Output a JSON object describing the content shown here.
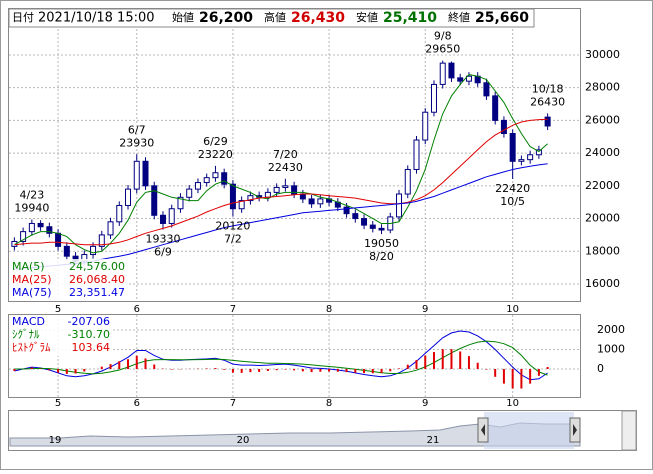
{
  "header": {
    "date_label": "日付",
    "date": "2021/10/18 15:00",
    "items": [
      {
        "label": "始値",
        "value": "26,200"
      },
      {
        "label": "高値",
        "value": "26,430"
      },
      {
        "label": "安値",
        "value": "25,410"
      },
      {
        "label": "終値",
        "value": "25,660"
      }
    ]
  },
  "chart_data": {
    "type": "candlestick",
    "categories": [
      null,
      null,
      null,
      null,
      null,
      "5",
      null,
      null,
      null,
      null,
      null,
      null,
      null,
      null,
      "6",
      null,
      null,
      null,
      null,
      null,
      null,
      null,
      null,
      null,
      null,
      "7",
      null,
      null,
      null,
      null,
      null,
      null,
      null,
      null,
      null,
      null,
      "8",
      null,
      null,
      null,
      null,
      null,
      null,
      null,
      null,
      null,
      null,
      "9",
      null,
      null,
      null,
      null,
      null,
      null,
      null,
      null,
      null,
      "10",
      null,
      null,
      null,
      null
    ],
    "ohlc": [
      [
        18300,
        18850,
        18050,
        18600
      ],
      [
        18600,
        19450,
        18350,
        19200
      ],
      [
        19200,
        19940,
        18950,
        19700
      ],
      [
        19700,
        19900,
        19250,
        19500
      ],
      [
        19500,
        19750,
        18850,
        19100
      ],
      [
        19100,
        19350,
        18050,
        18300
      ],
      [
        18300,
        18550,
        17450,
        17700
      ],
      [
        17700,
        17950,
        17150,
        17400
      ],
      [
        17400,
        18050,
        17150,
        17800
      ],
      [
        17800,
        18550,
        17550,
        18300
      ],
      [
        18300,
        19250,
        18050,
        19000
      ],
      [
        19000,
        20050,
        18750,
        19800
      ],
      [
        19800,
        21050,
        19550,
        20800
      ],
      [
        20800,
        22050,
        20550,
        21800
      ],
      [
        21800,
        23930,
        21550,
        23500
      ],
      [
        23500,
        23750,
        21750,
        22000
      ],
      [
        22000,
        22250,
        19950,
        20200
      ],
      [
        20200,
        20450,
        19330,
        19700
      ],
      [
        19700,
        20850,
        19450,
        20600
      ],
      [
        20600,
        21550,
        20350,
        21300
      ],
      [
        21300,
        22050,
        21050,
        21800
      ],
      [
        21800,
        22450,
        21550,
        22200
      ],
      [
        22200,
        22750,
        21950,
        22500
      ],
      [
        22500,
        23220,
        22250,
        22800
      ],
      [
        22800,
        23050,
        21850,
        22100
      ],
      [
        22100,
        22350,
        20120,
        20600
      ],
      [
        20600,
        21350,
        20350,
        21100
      ],
      [
        21100,
        21650,
        20850,
        21400
      ],
      [
        21400,
        21650,
        21050,
        21300
      ],
      [
        21300,
        21850,
        21050,
        21600
      ],
      [
        21600,
        22150,
        21350,
        21900
      ],
      [
        21900,
        22430,
        21650,
        22000
      ],
      [
        22000,
        22250,
        21250,
        21500
      ],
      [
        21500,
        21750,
        20950,
        21200
      ],
      [
        21200,
        21450,
        20650,
        20900
      ],
      [
        20900,
        21450,
        20650,
        21200
      ],
      [
        21200,
        21450,
        20750,
        21000
      ],
      [
        21000,
        21250,
        20450,
        20700
      ],
      [
        20700,
        20950,
        20050,
        20300
      ],
      [
        20300,
        20550,
        19750,
        20000
      ],
      [
        20000,
        20250,
        19350,
        19600
      ],
      [
        19600,
        19850,
        19150,
        19400
      ],
      [
        19400,
        19650,
        19050,
        19300
      ],
      [
        19300,
        20350,
        19100,
        20100
      ],
      [
        20100,
        21750,
        19850,
        21500
      ],
      [
        21500,
        23250,
        21250,
        23000
      ],
      [
        23000,
        25050,
        22750,
        24800
      ],
      [
        24800,
        26750,
        24550,
        26500
      ],
      [
        26500,
        28450,
        26250,
        28200
      ],
      [
        28200,
        29650,
        27950,
        29500
      ],
      [
        29500,
        29600,
        28350,
        28600
      ],
      [
        28600,
        28850,
        28150,
        28400
      ],
      [
        28400,
        28950,
        28150,
        28700
      ],
      [
        28700,
        28950,
        28050,
        28300
      ],
      [
        28300,
        28550,
        27250,
        27500
      ],
      [
        27500,
        27750,
        25750,
        26000
      ],
      [
        26000,
        26250,
        24950,
        25200
      ],
      [
        25200,
        25450,
        22420,
        23500
      ],
      [
        23500,
        23850,
        23250,
        23600
      ],
      [
        23600,
        24150,
        23350,
        23900
      ],
      [
        23900,
        24450,
        23650,
        24200
      ],
      [
        26200,
        26430,
        25410,
        25660
      ]
    ],
    "candle_colors": {
      "up": "#ffffff",
      "down": "#000080",
      "outline": "#000080"
    },
    "series": [
      {
        "name": "MA(5)",
        "color": "#008000",
        "value_label": "24,576.00",
        "values": [
          18400,
          18700,
          19000,
          19200,
          19200,
          19100,
          18900,
          18400,
          18100,
          17900,
          18000,
          18500,
          19100,
          19900,
          21000,
          21600,
          21700,
          21500,
          21300,
          21200,
          21100,
          21100,
          21700,
          22100,
          22300,
          22000,
          21800,
          21600,
          21300,
          21200,
          21500,
          21600,
          21600,
          21600,
          21500,
          21300,
          21200,
          21000,
          20800,
          20600,
          20300,
          20000,
          19700,
          19700,
          19800,
          20700,
          21700,
          23000,
          24800,
          26400,
          27500,
          28200,
          28800,
          28700,
          28500,
          27800,
          27100,
          26100,
          25200,
          24400,
          24100,
          24576
        ]
      },
      {
        "name": "MA(25)",
        "color": "#e00000",
        "value_label": "26,068.40",
        "values": [
          18400,
          18450,
          18500,
          18500,
          18550,
          18550,
          18500,
          18450,
          18400,
          18400,
          18400,
          18450,
          18550,
          18700,
          18900,
          19100,
          19250,
          19400,
          19550,
          19750,
          19950,
          20150,
          20400,
          20600,
          20800,
          20950,
          21050,
          21150,
          21250,
          21300,
          21350,
          21400,
          21450,
          21500,
          21500,
          21450,
          21400,
          21350,
          21300,
          21250,
          21150,
          21050,
          20950,
          20900,
          20900,
          21000,
          21150,
          21400,
          21750,
          22200,
          22700,
          23200,
          23700,
          24200,
          24700,
          25100,
          25400,
          25700,
          25900,
          26000,
          26050,
          26068.4
        ]
      },
      {
        "name": "MA(75)",
        "color": "#0000e0",
        "value_label": "23,351.47",
        "values": [
          16900,
          16950,
          17000,
          17050,
          17100,
          17150,
          17200,
          17250,
          17300,
          17400,
          17500,
          17600,
          17700,
          17800,
          17950,
          18100,
          18250,
          18400,
          18550,
          18700,
          18850,
          19000,
          19150,
          19300,
          19450,
          19550,
          19650,
          19750,
          19850,
          19950,
          20050,
          20150,
          20250,
          20350,
          20400,
          20450,
          20500,
          20550,
          20600,
          20650,
          20700,
          20750,
          20800,
          20850,
          20900,
          20950,
          21050,
          21200,
          21350,
          21550,
          21750,
          21950,
          22150,
          22350,
          22550,
          22700,
          22850,
          23000,
          23100,
          23200,
          23280,
          23351.47
        ]
      }
    ],
    "ylim": [
      14960,
      32810
    ],
    "yticks": [
      16000,
      18000,
      20000,
      22000,
      24000,
      26000,
      28000,
      30000
    ],
    "grid": true,
    "annotations": [
      {
        "date": "4/23",
        "value": 19940
      },
      {
        "date": "6/7",
        "value": 23930
      },
      {
        "date": "6/9",
        "value": 19330
      },
      {
        "date": "6/29",
        "value": 23220
      },
      {
        "date": "7/2",
        "value": 20120
      },
      {
        "date": "7/20",
        "value": 22430
      },
      {
        "date": "8/20",
        "value": 19050
      },
      {
        "date": "9/8",
        "value": 29650
      },
      {
        "date": "10/5",
        "value": 22420
      },
      {
        "date": "10/18",
        "value": 26430
      }
    ],
    "macd": {
      "ylim": [
        -1436,
        2770
      ],
      "yticks": [
        0,
        1000,
        2000
      ],
      "series": [
        {
          "name": "MACD",
          "type": "line",
          "color": "#0000e0",
          "value_label": "-207.06",
          "values": [
            -100,
            0,
            100,
            50,
            -50,
            -200,
            -350,
            -400,
            -350,
            -250,
            -100,
            100,
            350,
            600,
            950,
            950,
            700,
            500,
            450,
            450,
            480,
            500,
            520,
            550,
            450,
            250,
            200,
            200,
            180,
            200,
            230,
            250,
            200,
            130,
            50,
            30,
            0,
            -50,
            -120,
            -200,
            -280,
            -350,
            -400,
            -350,
            -200,
            50,
            400,
            800,
            1200,
            1600,
            1850,
            1950,
            1900,
            1700,
            1400,
            1000,
            550,
            100,
            -300,
            -550,
            -500,
            -207.06
          ]
        },
        {
          "name": "ｼｸﾞﾅﾙ",
          "type": "line",
          "color": "#008000",
          "value_label": "-310.70",
          "values": [
            0,
            0,
            20,
            30,
            20,
            -20,
            -100,
            -170,
            -220,
            -250,
            -220,
            -150,
            -50,
            100,
            270,
            410,
            470,
            480,
            480,
            470,
            470,
            480,
            490,
            500,
            490,
            440,
            400,
            360,
            330,
            300,
            290,
            280,
            270,
            250,
            210,
            170,
            130,
            90,
            40,
            -10,
            -70,
            -130,
            -190,
            -230,
            -230,
            -170,
            -60,
            110,
            330,
            580,
            830,
            1050,
            1240,
            1380,
            1430,
            1400,
            1300,
            1100,
            700,
            200,
            -150,
            -310.7
          ]
        },
        {
          "name": "ﾋｽﾄｸﾞﾗﾑ",
          "type": "bar",
          "color": "#e00000",
          "value_label": "103.64",
          "values": [
            -100,
            0,
            80,
            20,
            -70,
            -180,
            -250,
            -230,
            -130,
            0,
            120,
            250,
            400,
            500,
            680,
            540,
            230,
            20,
            -30,
            -20,
            10,
            20,
            30,
            50,
            -40,
            -190,
            -200,
            -160,
            -150,
            -100,
            -60,
            -30,
            -70,
            -120,
            -160,
            -140,
            -130,
            -140,
            -160,
            -190,
            -210,
            -220,
            -210,
            -120,
            30,
            220,
            460,
            690,
            870,
            1020,
            1020,
            900,
            660,
            320,
            -30,
            -400,
            -750,
            -1000,
            -1000,
            -750,
            -350,
            103.64
          ]
        }
      ]
    }
  },
  "navigator": {
    "labels": [
      "19",
      "20",
      "21"
    ]
  }
}
